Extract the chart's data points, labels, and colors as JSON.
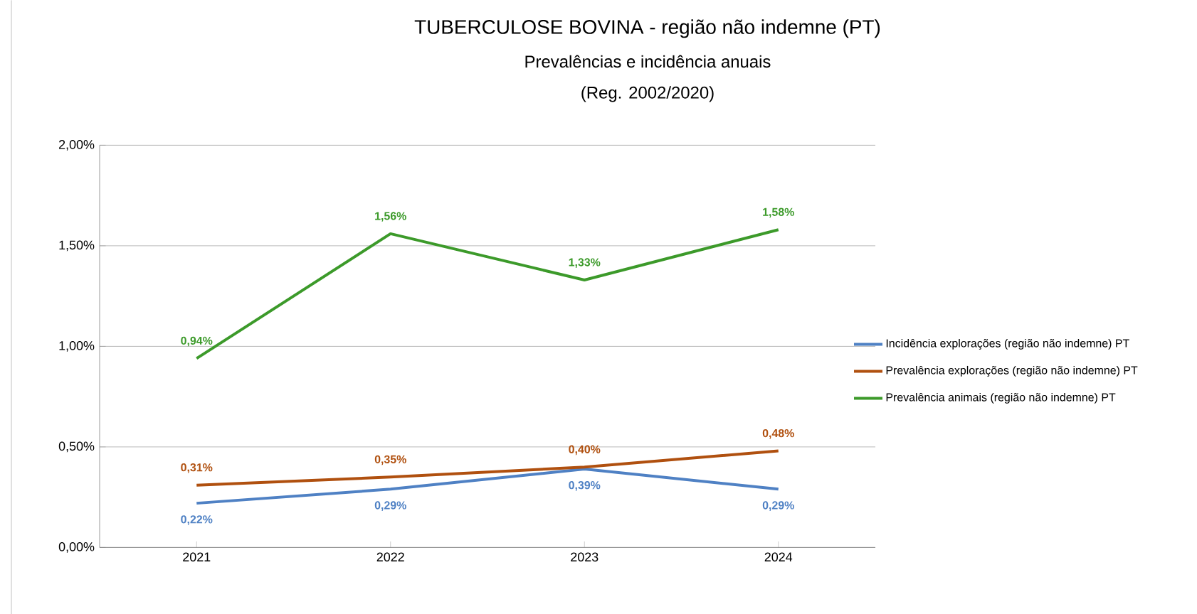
{
  "chart_data": {
    "type": "line",
    "title": "TUBERCULOSE BOVINA - região não indemne (PT)",
    "subtitle": "Prevalências e incidência anuais",
    "annotations": [
      "(Reg. 2002/2020)"
    ],
    "categories": [
      "2021",
      "2022",
      "2023",
      "2024"
    ],
    "series": [
      {
        "name": "Incidência explorações (região não indemne) PT",
        "color": "#4f81c4",
        "values": [
          0.22,
          0.29,
          0.39,
          0.29
        ],
        "value_labels": [
          "0,22%",
          "0,29%",
          "0,39%",
          "0,29%"
        ]
      },
      {
        "name": "Prevalência explorações (região não indemne) PT",
        "color": "#b0500f",
        "values": [
          0.31,
          0.35,
          0.4,
          0.48
        ],
        "value_labels": [
          "0,31%",
          "0,35%",
          "0,40%",
          "0,48%"
        ]
      },
      {
        "name": "Prevalência animais (região não indemne) PT",
        "color": "#3c9a2a",
        "values": [
          0.94,
          1.56,
          1.33,
          1.58
        ],
        "value_labels": [
          "0,94%",
          "1,56%",
          "1,33%",
          "1,58%"
        ]
      }
    ],
    "ylim": [
      0,
      2
    ],
    "yticks": [
      {
        "value": 0,
        "label": "0,00%"
      },
      {
        "value": 0.5,
        "label": "0,50%"
      },
      {
        "value": 1,
        "label": "1,00%"
      },
      {
        "value": 1.5,
        "label": "1,50%"
      },
      {
        "value": 2,
        "label": "2,00%"
      }
    ],
    "grid": "y",
    "legend": "right",
    "marker": "none",
    "line_style": "solid"
  }
}
